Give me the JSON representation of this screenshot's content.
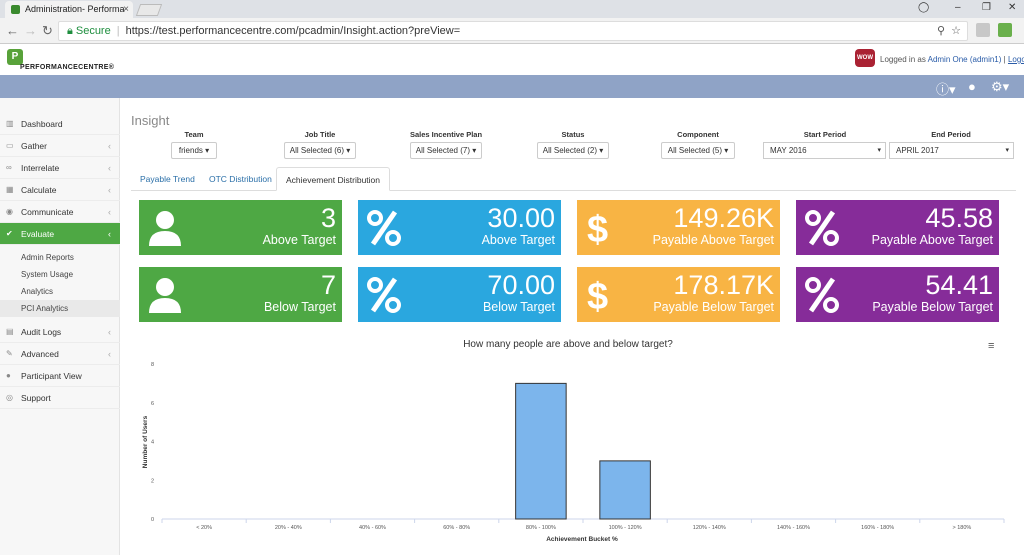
{
  "browser": {
    "tab_title": "Administration- Performa",
    "tab_close": "×",
    "secure_label": "Secure",
    "url": "https://test.performancecentre.com/pcadmin/Insight.action?preView=",
    "win_min": "–",
    "win_max": "❐",
    "win_close": "✕"
  },
  "header": {
    "logo_text": "PERFORMANCECENTRE®",
    "logged_in_prefix": "Logged in as",
    "user": "Admin One (admin1)",
    "separator": "|",
    "logout": "Logout"
  },
  "sidebar": {
    "items": [
      {
        "label": "Dashboard",
        "icon": "chart-icon",
        "chevron": ""
      },
      {
        "label": "Gather",
        "icon": "folder-icon",
        "chevron": "‹"
      },
      {
        "label": "Interrelate",
        "icon": "link-icon",
        "chevron": "‹"
      },
      {
        "label": "Calculate",
        "icon": "calculator-icon",
        "chevron": "‹"
      },
      {
        "label": "Communicate",
        "icon": "chat-icon",
        "chevron": "‹"
      },
      {
        "label": "Evaluate",
        "icon": "check-icon",
        "chevron": "‹"
      },
      {
        "label": "Audit Logs",
        "icon": "doc-icon",
        "chevron": "‹"
      },
      {
        "label": "Advanced",
        "icon": "wrench-icon",
        "chevron": "‹"
      },
      {
        "label": "Participant View",
        "icon": "user-icon",
        "chevron": ""
      },
      {
        "label": "Support",
        "icon": "help-icon",
        "chevron": ""
      }
    ],
    "sub_items": [
      "Admin Reports",
      "System Usage",
      "Analytics",
      "PCI Analytics"
    ]
  },
  "page": {
    "title": "Insight"
  },
  "filters": [
    {
      "label": "Team",
      "value": "friends ▾"
    },
    {
      "label": "Job Title",
      "value": "All Selected (6) ▾"
    },
    {
      "label": "Sales Incentive Plan",
      "value": "All Selected (7) ▾"
    },
    {
      "label": "Status",
      "value": "All Selected (2) ▾"
    },
    {
      "label": "Component",
      "value": "All Selected (5) ▾"
    },
    {
      "label": "Start Period",
      "value": "MAY 2016",
      "arrow": "▾"
    },
    {
      "label": "End Period",
      "value": "APRIL 2017",
      "arrow": "▾"
    }
  ],
  "tabs": [
    "Payable Trend",
    "OTC Distribution",
    "Achievement Distribution"
  ],
  "kpis": [
    {
      "value": "3",
      "label": "Above Target",
      "icon": "user-icon",
      "color": "#4ea844"
    },
    {
      "value": "30.00",
      "label": "Above Target",
      "icon": "percent-icon",
      "color": "#2aa7df"
    },
    {
      "value": "149.26K",
      "label": "Payable Above Target",
      "icon": "dollar-icon",
      "color": "#f8b444"
    },
    {
      "value": "45.58",
      "label": "Payable Above Target",
      "icon": "percent-icon",
      "color": "#862c99"
    },
    {
      "value": "7",
      "label": "Below Target",
      "icon": "user-icon",
      "color": "#4ea844"
    },
    {
      "value": "70.00",
      "label": "Below Target",
      "icon": "percent-icon",
      "color": "#2aa7df"
    },
    {
      "value": "178.17K",
      "label": "Payable Below Target",
      "icon": "dollar-icon",
      "color": "#f8b444"
    },
    {
      "value": "54.41",
      "label": "Payable Below Target",
      "icon": "percent-icon",
      "color": "#862c99"
    }
  ],
  "chart_data": {
    "type": "bar",
    "title": "How many people are above and below target?",
    "xlabel": "Achievement Bucket %",
    "ylabel": "Number of Users",
    "categories": [
      "< 20%",
      "20% - 40%",
      "40% - 60%",
      "60% - 80%",
      "80% - 100%",
      "100% - 120%",
      "120% - 140%",
      "140% - 160%",
      "160% - 180%",
      "> 180%"
    ],
    "values": [
      0,
      0,
      0,
      0,
      7,
      3,
      0,
      0,
      0,
      0
    ],
    "ylim": [
      0,
      8
    ],
    "yticks": [
      "0",
      "2",
      "4",
      "6",
      "8"
    ],
    "bar_color": "#7cb5ec",
    "menu_icon": "≡",
    "legend": "none",
    "grid": false
  }
}
